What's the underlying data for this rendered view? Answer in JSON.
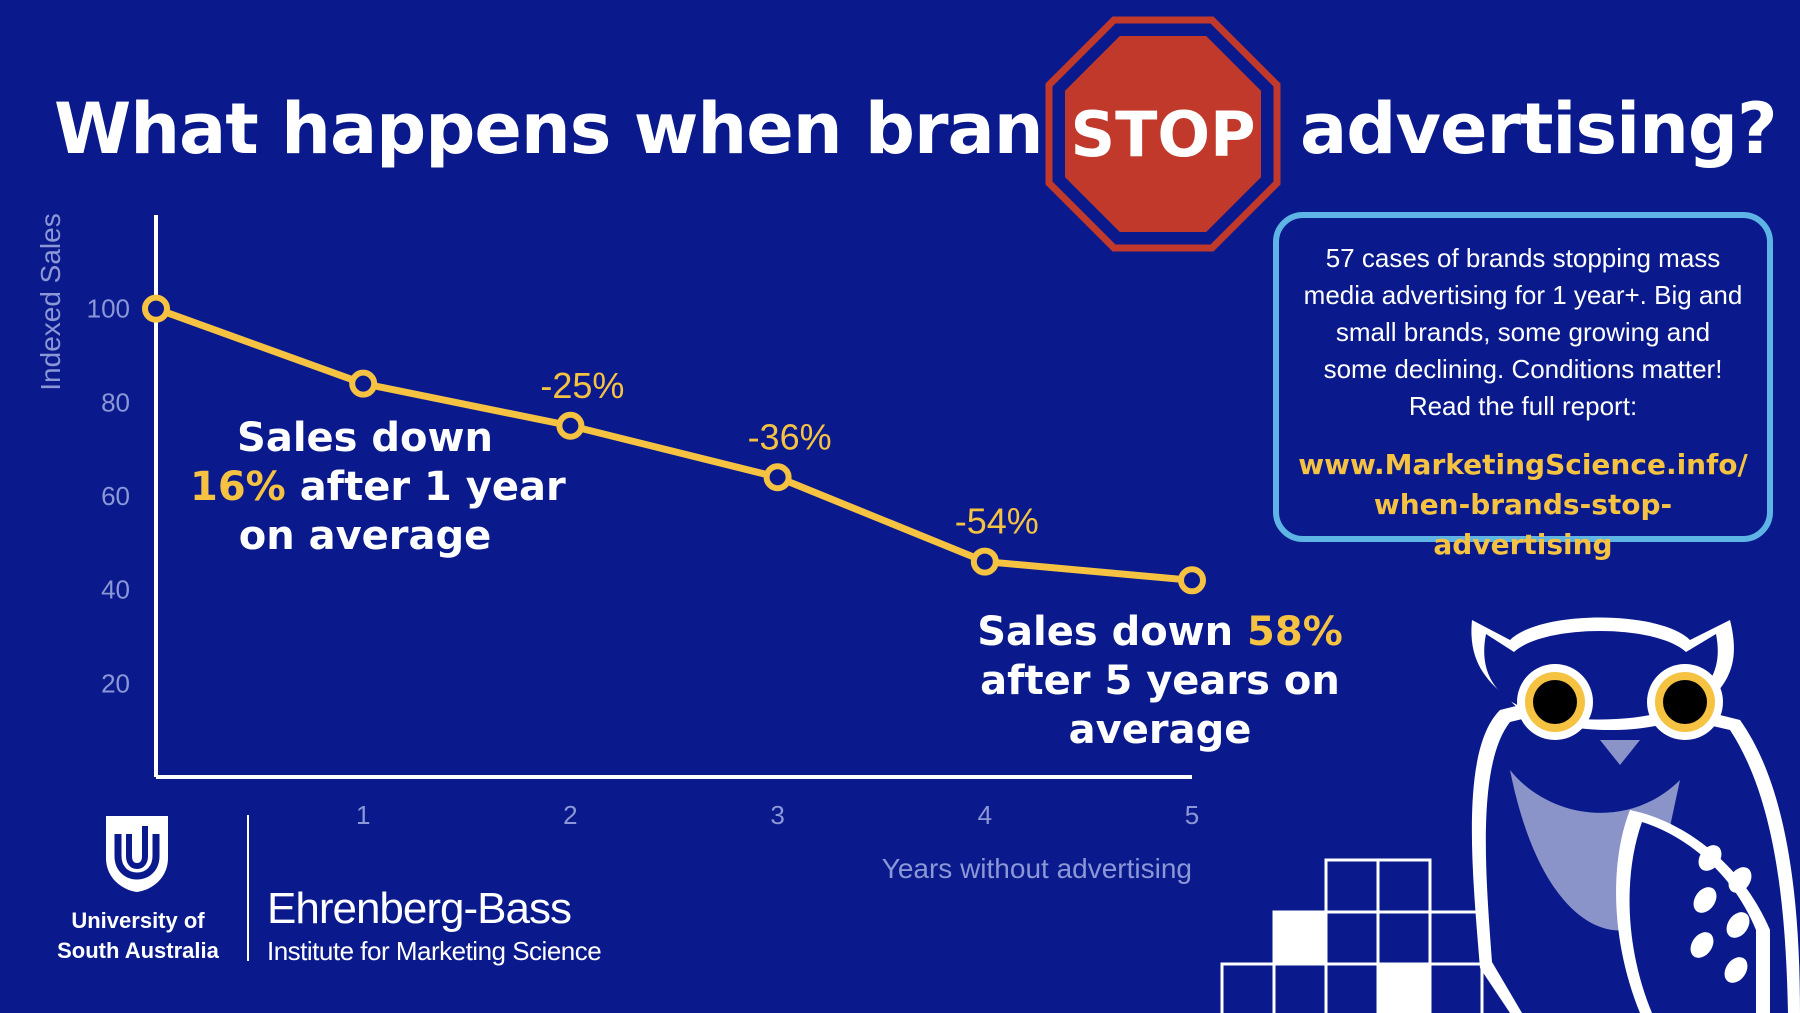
{
  "header": {
    "title_before": "What happens when brands",
    "stop_sign_text": "STOP",
    "title_after": "advertising?"
  },
  "colors": {
    "background": "#0a1a8c",
    "line": "#f5c242",
    "highlight": "#f5c242",
    "stop_sign_fill": "#c0392b",
    "info_border": "#5fb4e6",
    "axis_text": "#8b97d6"
  },
  "chart_data": {
    "type": "line",
    "title": "",
    "xlabel": "Years without advertising",
    "ylabel": "Indexed Sales",
    "x": [
      0,
      1,
      2,
      3,
      4,
      5
    ],
    "xticks": [
      1,
      2,
      3,
      4,
      5
    ],
    "yticks": [
      20,
      40,
      60,
      80,
      100
    ],
    "ylim": [
      0,
      120
    ],
    "xlim": [
      0,
      5
    ],
    "grid": false,
    "series": [
      {
        "values": [
          100,
          84,
          75,
          64,
          46,
          42
        ]
      }
    ],
    "data_labels": [
      {
        "x": 2,
        "text": "-25%"
      },
      {
        "x": 3,
        "text": "-36%"
      },
      {
        "x": 4,
        "text": "-54%"
      }
    ]
  },
  "annotations": {
    "year1": {
      "line1": "Sales down",
      "highlight": "16%",
      "line2_rest": "after 1 year",
      "line3": "on average"
    },
    "year5": {
      "line1": "Sales down",
      "highlight": "58%",
      "line2": "after 5 years on",
      "line3": "average"
    }
  },
  "info_box": {
    "text": "57 cases of brands stopping mass media advertising for 1 year+. Big and small brands, some growing and some declining. Conditions matter! Read the full report:",
    "link_line1": "www.MarketingScience.info/",
    "link_line2": "when-brands-stop-advertising"
  },
  "footer": {
    "university": "University of South Australia",
    "institute_name": "Ehrenberg-Bass",
    "institute_sub": "Institute for Marketing Science"
  },
  "decoration": {
    "mascot": "owl-illustration",
    "pattern": "pixel-grid"
  }
}
